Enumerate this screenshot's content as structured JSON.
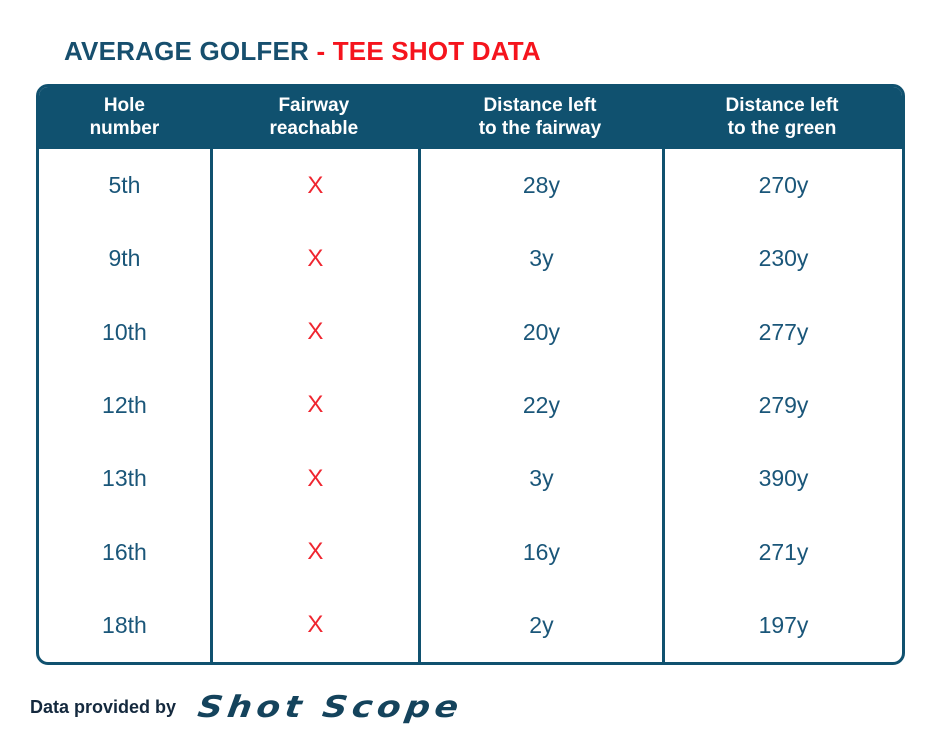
{
  "title": {
    "left": "AVERAGE GOLFER ",
    "right": "- TEE SHOT DATA"
  },
  "colors": {
    "header_bg": "#10516F",
    "border": "#10516F",
    "body_text": "#1A5679",
    "title_navy": "#174F6E",
    "title_red": "#F5141D",
    "x_red": "#EF2630"
  },
  "table": {
    "headers": [
      {
        "line1": "Hole",
        "line2": "number"
      },
      {
        "line1": "Fairway",
        "line2": "reachable"
      },
      {
        "line1": "Distance left",
        "line2": "to the fairway"
      },
      {
        "line1": "Distance left",
        "line2": "to the green"
      }
    ],
    "rows": [
      {
        "hole": "5th",
        "fairway_reachable": "X",
        "distance_left_to_fairway": "28y",
        "distance_left_to_green": "270y"
      },
      {
        "hole": "9th",
        "fairway_reachable": "X",
        "distance_left_to_fairway": "3y",
        "distance_left_to_green": "230y"
      },
      {
        "hole": "10th",
        "fairway_reachable": "X",
        "distance_left_to_fairway": "20y",
        "distance_left_to_green": "277y"
      },
      {
        "hole": "12th",
        "fairway_reachable": "X",
        "distance_left_to_fairway": "22y",
        "distance_left_to_green": "279y"
      },
      {
        "hole": "13th",
        "fairway_reachable": "X",
        "distance_left_to_fairway": "3y",
        "distance_left_to_green": "390y"
      },
      {
        "hole": "16th",
        "fairway_reachable": "X",
        "distance_left_to_fairway": "16y",
        "distance_left_to_green": "271y"
      },
      {
        "hole": "18th",
        "fairway_reachable": "X",
        "distance_left_to_fairway": "2y",
        "distance_left_to_green": "197y"
      }
    ]
  },
  "chart_data": {
    "type": "table",
    "title": "AVERAGE GOLFER - TEE SHOT DATA",
    "columns": [
      "Hole number",
      "Fairway reachable",
      "Distance left to the fairway",
      "Distance left to the green"
    ],
    "rows": [
      [
        "5th",
        "X",
        "28y",
        "270y"
      ],
      [
        "9th",
        "X",
        "3y",
        "230y"
      ],
      [
        "10th",
        "X",
        "20y",
        "277y"
      ],
      [
        "12th",
        "X",
        "22y",
        "279y"
      ],
      [
        "13th",
        "X",
        "3y",
        "390y"
      ],
      [
        "16th",
        "X",
        "16y",
        "271y"
      ],
      [
        "18th",
        "X",
        "2y",
        "197y"
      ]
    ]
  },
  "footer": {
    "label": "Data provided by",
    "brand": "Shot Scope"
  }
}
